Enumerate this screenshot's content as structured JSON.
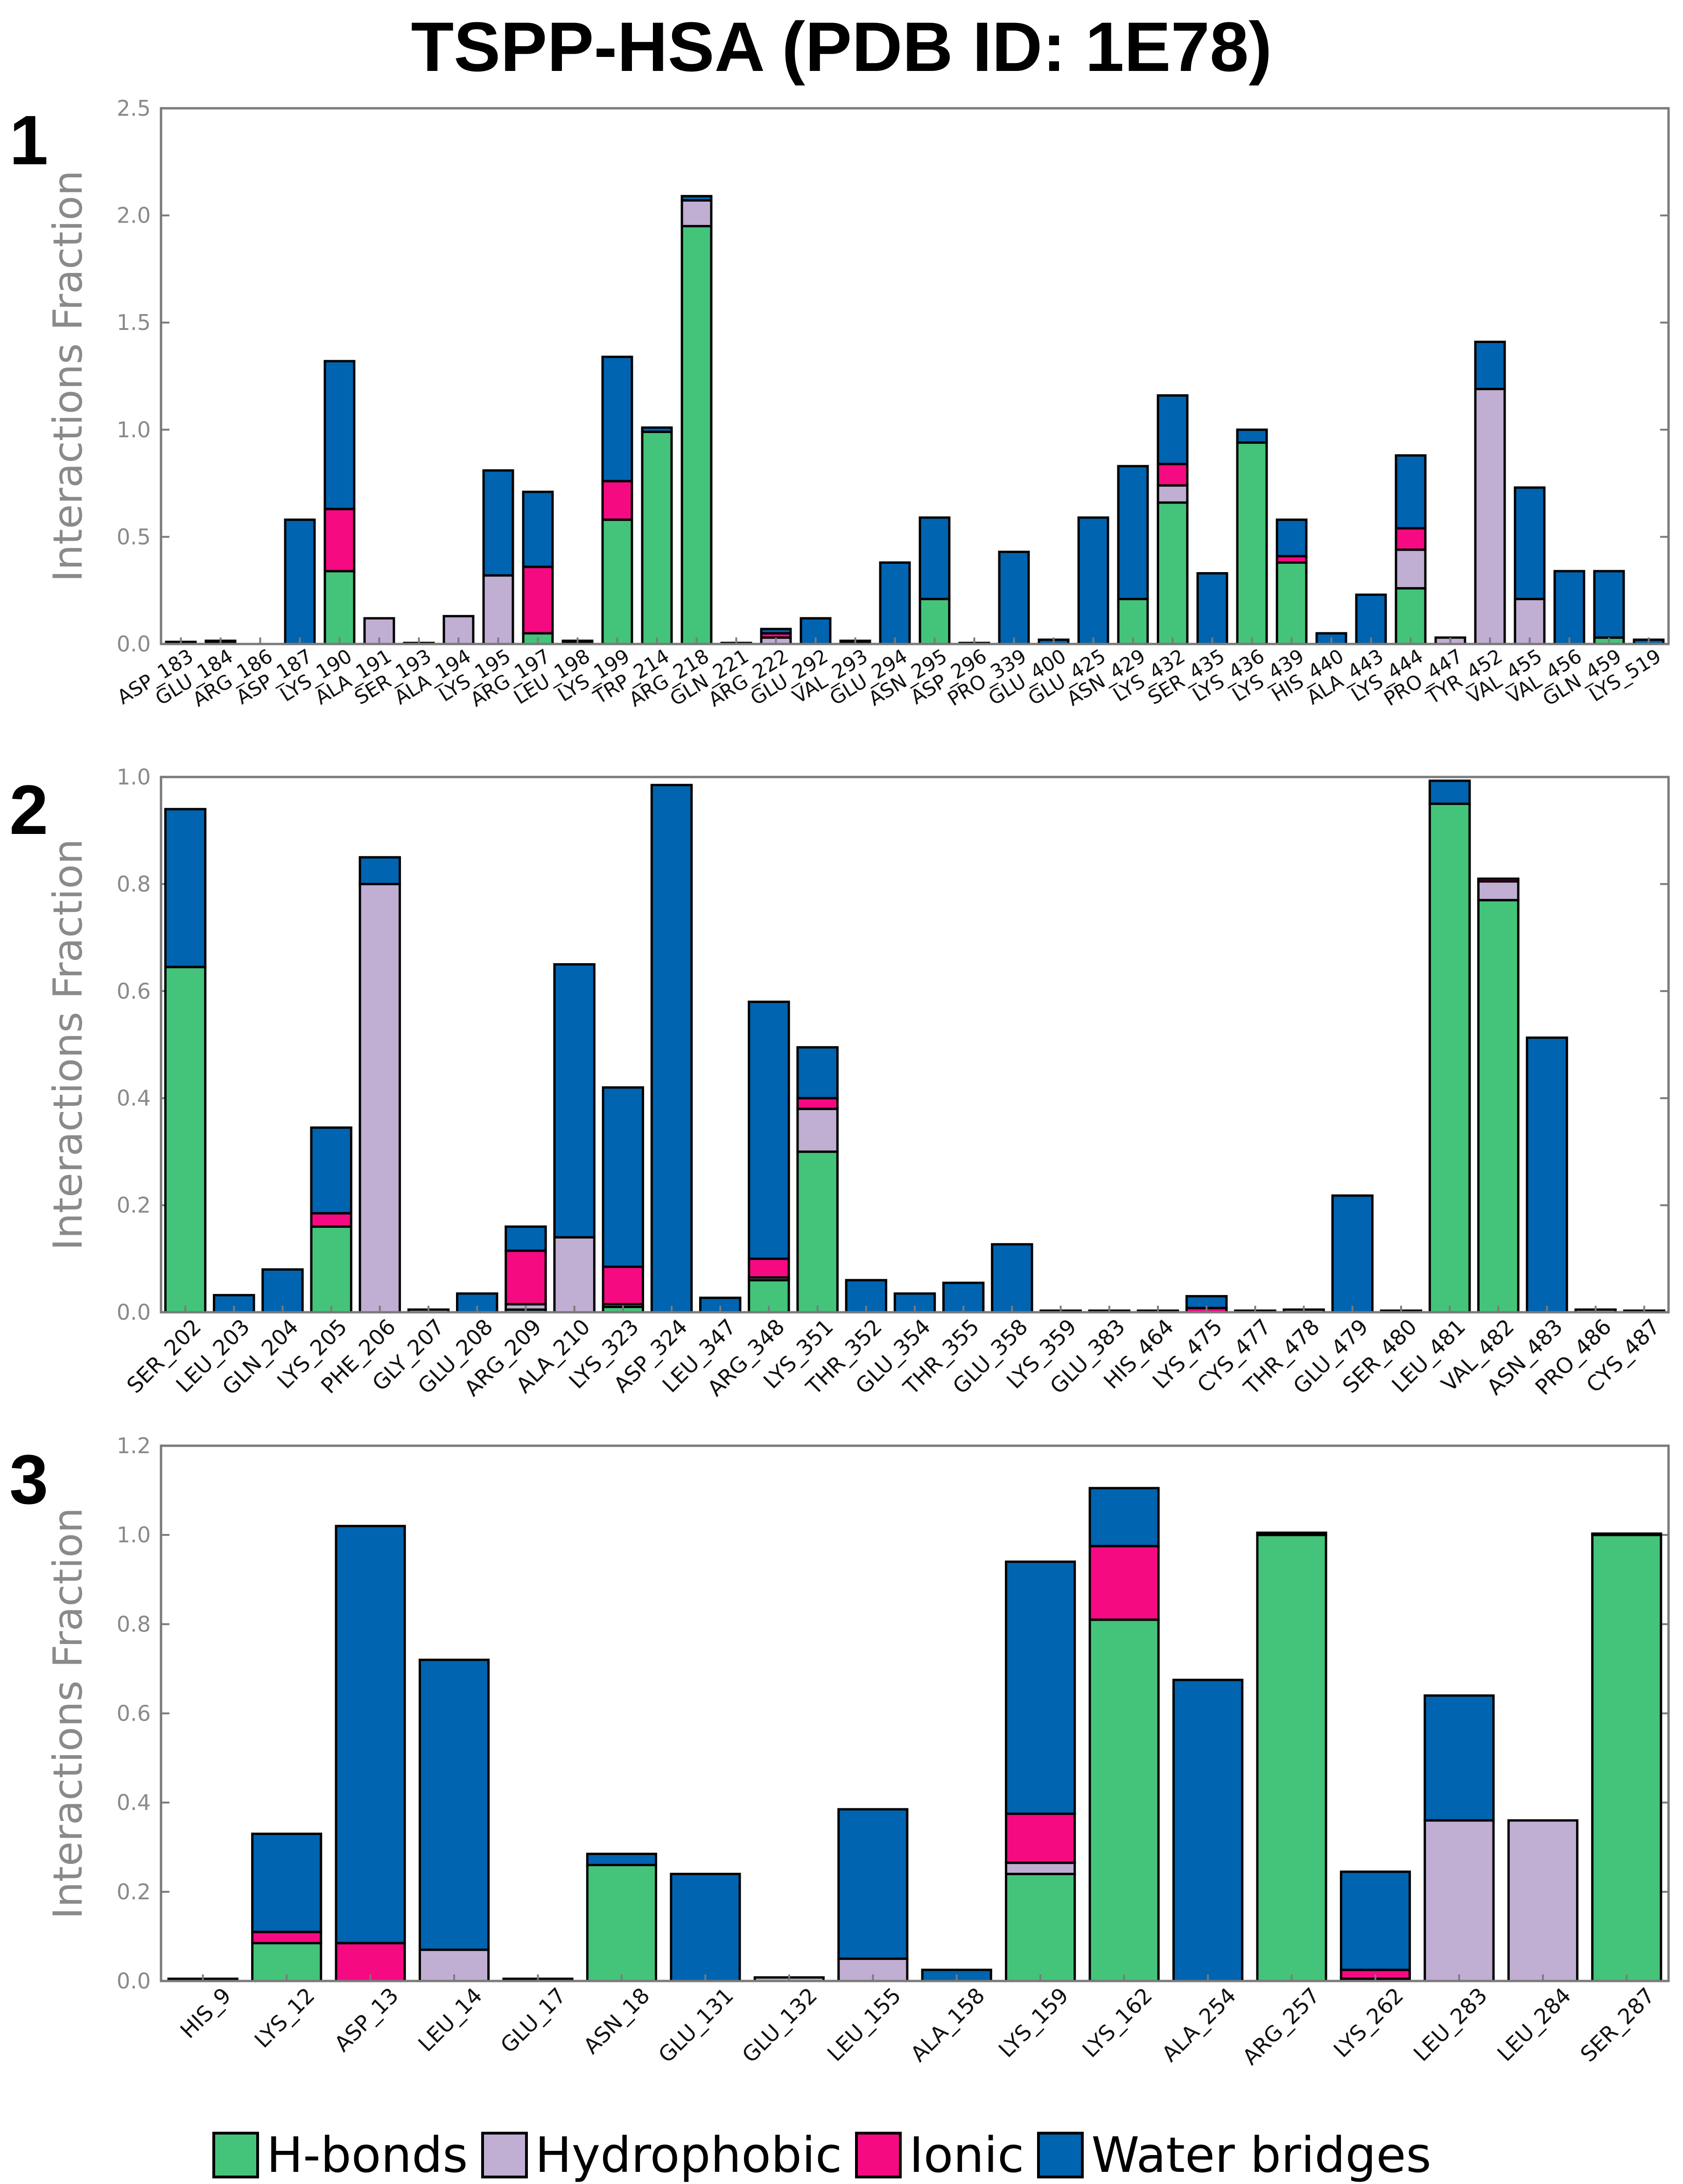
{
  "title": "TSPP-HSA (PDB ID: 1E78)",
  "panels": [
    "1",
    "2",
    "3"
  ],
  "colors": {
    "hbonds": "#44c47a",
    "hydrophobic": "#c1aed3",
    "ionic": "#f50a82",
    "water": "#0064b0",
    "axis": "#7a7a7a",
    "tick_text": "#8a8a8a"
  },
  "legend": [
    {
      "label": "H-bonds",
      "color": "#44c47a"
    },
    {
      "label": "Hydrophobic",
      "color": "#c1aed3"
    },
    {
      "label": "Ionic",
      "color": "#f50a82"
    },
    {
      "label": "Water bridges",
      "color": "#0064b0"
    }
  ],
  "chart_data": [
    {
      "type": "bar",
      "stacked": true,
      "panel": "1",
      "ylabel": "Interactions Fraction",
      "ylim": [
        0,
        2.5
      ],
      "yticks": [
        "0.0",
        "0.5",
        "1.0",
        "1.5",
        "2.0",
        "2.5"
      ],
      "categories": [
        "ASP_183",
        "GLU_184",
        "ARG_186",
        "ASP_187",
        "LYS_190",
        "ALA_191",
        "SER_193",
        "ALA_194",
        "LYS_195",
        "ARG_197",
        "LEU_198",
        "LYS_199",
        "TRP_214",
        "ARG_218",
        "GLN_221",
        "ARG_222",
        "GLU_292",
        "VAL_293",
        "GLU_294",
        "ASN_295",
        "ASP_296",
        "PRO_339",
        "GLU_400",
        "GLU_425",
        "ASN_429",
        "LYS_432",
        "SER_435",
        "LYS_436",
        "LYS_439",
        "HIS_440",
        "ALA_443",
        "LYS_444",
        "PRO_447",
        "TYR_452",
        "VAL_455",
        "VAL_456",
        "GLN_459",
        "LYS_519"
      ],
      "series": [
        {
          "name": "H-bonds",
          "values": [
            0,
            0,
            0,
            0,
            0.34,
            0,
            0,
            0,
            0,
            0.05,
            0,
            0.58,
            0.99,
            1.95,
            0,
            0,
            0,
            0,
            0,
            0.21,
            0,
            0,
            0,
            0,
            0.21,
            0.66,
            0,
            0.94,
            0.38,
            0,
            0,
            0.26,
            0,
            0,
            0,
            0,
            0.03,
            0
          ]
        },
        {
          "name": "Hydrophobic",
          "values": [
            0.005,
            0.005,
            0,
            0,
            0,
            0.12,
            0.005,
            0.13,
            0.32,
            0,
            0.005,
            0,
            0,
            0.12,
            0.005,
            0.03,
            0,
            0.005,
            0,
            0,
            0.005,
            0,
            0,
            0,
            0,
            0.08,
            0,
            0,
            0,
            0,
            0,
            0.18,
            0.03,
            1.19,
            0.21,
            0,
            0,
            0
          ]
        },
        {
          "name": "Ionic",
          "values": [
            0,
            0,
            0,
            0,
            0.29,
            0,
            0,
            0,
            0,
            0.31,
            0,
            0.18,
            0,
            0,
            0,
            0.02,
            0,
            0,
            0,
            0,
            0,
            0,
            0,
            0,
            0,
            0.1,
            0,
            0,
            0.03,
            0,
            0,
            0.1,
            0,
            0,
            0,
            0,
            0,
            0
          ]
        },
        {
          "name": "Water bridges",
          "values": [
            0.005,
            0.01,
            0,
            0.58,
            0.69,
            0,
            0,
            0,
            0.49,
            0.35,
            0.01,
            0.58,
            0.02,
            0.02,
            0,
            0.02,
            0.12,
            0.01,
            0.38,
            0.38,
            0,
            0.43,
            0.02,
            0.59,
            0.62,
            0.32,
            0.33,
            0.06,
            0.17,
            0.05,
            0.23,
            0.34,
            0,
            0.22,
            0.52,
            0.34,
            0.31,
            0.02
          ]
        }
      ]
    },
    {
      "type": "bar",
      "stacked": true,
      "panel": "2",
      "ylabel": "Interactions Fraction",
      "ylim": [
        0,
        1.0
      ],
      "yticks": [
        "0.0",
        "0.2",
        "0.4",
        "0.6",
        "0.8",
        "1.0"
      ],
      "categories": [
        "SER_202",
        "LEU_203",
        "GLN_204",
        "LYS_205",
        "PHE_206",
        "GLY_207",
        "GLU_208",
        "ARG_209",
        "ALA_210",
        "LYS_323",
        "ASP_324",
        "LEU_347",
        "ARG_348",
        "LYS_351",
        "THR_352",
        "GLU_354",
        "THR_355",
        "GLU_358",
        "LYS_359",
        "GLU_383",
        "HIS_464",
        "LYS_475",
        "CYS_477",
        "THR_478",
        "GLU_479",
        "SER_480",
        "LEU_481",
        "VAL_482",
        "ASN_483",
        "PRO_486",
        "CYS_487"
      ],
      "series": [
        {
          "name": "H-bonds",
          "values": [
            0.645,
            0,
            0,
            0.16,
            0,
            0,
            0,
            0.005,
            0,
            0.01,
            0,
            0,
            0.06,
            0.3,
            0,
            0,
            0,
            0,
            0,
            0,
            0,
            0,
            0,
            0,
            0,
            0,
            0.95,
            0.77,
            0,
            0,
            0
          ]
        },
        {
          "name": "Hydrophobic",
          "values": [
            0,
            0,
            0,
            0,
            0.8,
            0.005,
            0,
            0.01,
            0.14,
            0.005,
            0,
            0,
            0.005,
            0.08,
            0,
            0,
            0,
            0,
            0.003,
            0.003,
            0.003,
            0,
            0.003,
            0.005,
            0,
            0.003,
            0,
            0.035,
            0,
            0.005,
            0.003
          ]
        },
        {
          "name": "Ionic",
          "values": [
            0,
            0,
            0,
            0.025,
            0,
            0,
            0,
            0.1,
            0,
            0.07,
            0,
            0,
            0.035,
            0.02,
            0,
            0,
            0,
            0,
            0,
            0,
            0,
            0.008,
            0,
            0,
            0,
            0,
            0,
            0.005,
            0,
            0,
            0
          ]
        },
        {
          "name": "Water bridges",
          "values": [
            0.295,
            0.032,
            0.08,
            0.16,
            0.05,
            0,
            0.035,
            0.045,
            0.51,
            0.335,
            0.985,
            0.027,
            0.48,
            0.095,
            0.06,
            0.035,
            0.055,
            0.127,
            0,
            0,
            0,
            0.022,
            0,
            0,
            0.218,
            0,
            0.043,
            0,
            0.513,
            0,
            0
          ]
        }
      ]
    },
    {
      "type": "bar",
      "stacked": true,
      "panel": "3",
      "ylabel": "Interactions Fraction",
      "ylim": [
        0,
        1.2
      ],
      "yticks": [
        "0.0",
        "0.2",
        "0.4",
        "0.6",
        "0.8",
        "1.0",
        "1.2"
      ],
      "categories": [
        "HIS_9",
        "LYS_12",
        "ASP_13",
        "LEU_14",
        "GLU_17",
        "ASN_18",
        "GLU_131",
        "GLU_132",
        "LEU_155",
        "ALA_158",
        "LYS_159",
        "LYS_162",
        "ALA_254",
        "ARG_257",
        "LYS_262",
        "LEU_283",
        "LEU_284",
        "SER_287"
      ],
      "series": [
        {
          "name": "H-bonds",
          "values": [
            0,
            0.085,
            0,
            0,
            0,
            0.26,
            0,
            0,
            0,
            0,
            0.24,
            0.81,
            0,
            1.0,
            0,
            0,
            0,
            1.0
          ]
        },
        {
          "name": "Hydrophobic",
          "values": [
            0.005,
            0,
            0,
            0.07,
            0.005,
            0,
            0,
            0.008,
            0.05,
            0,
            0.025,
            0,
            0,
            0,
            0.005,
            0.36,
            0.36,
            0
          ]
        },
        {
          "name": "Ionic",
          "values": [
            0,
            0.025,
            0.085,
            0,
            0,
            0,
            0,
            0,
            0,
            0,
            0.11,
            0.165,
            0,
            0,
            0.02,
            0,
            0,
            0
          ]
        },
        {
          "name": "Water bridges",
          "values": [
            0,
            0.22,
            0.935,
            0.65,
            0,
            0.025,
            0.24,
            0,
            0.335,
            0.025,
            0.565,
            0.13,
            0.675,
            0.005,
            0.22,
            0.28,
            0,
            0.003
          ]
        }
      ]
    }
  ]
}
